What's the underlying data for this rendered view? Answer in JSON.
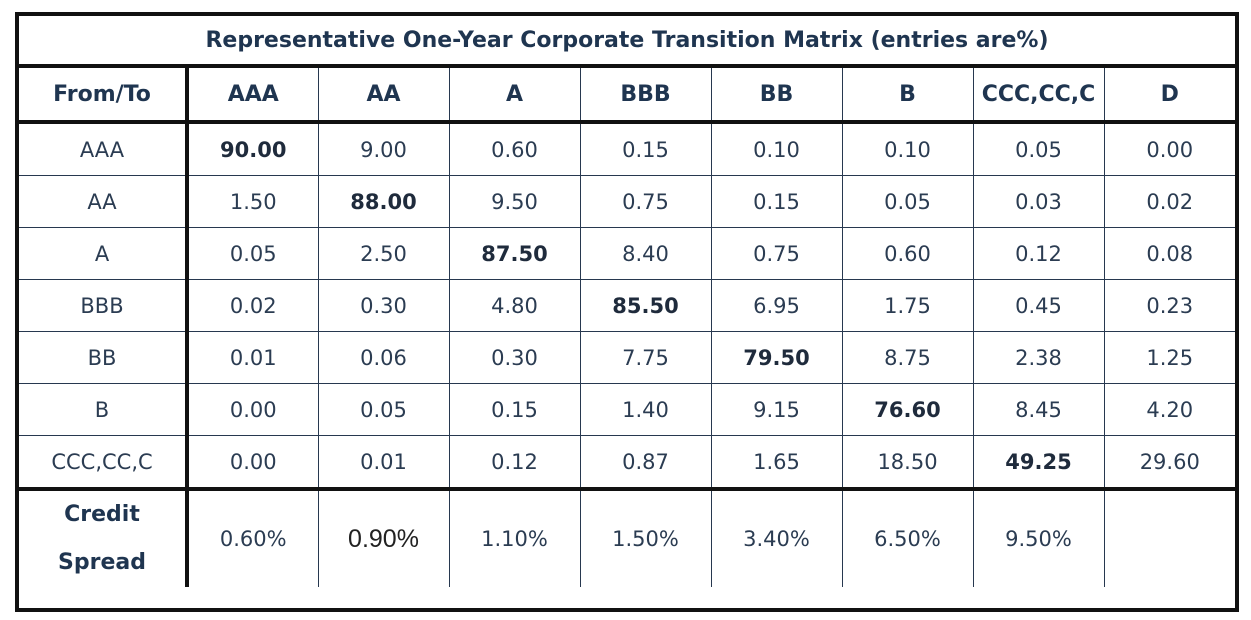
{
  "title": "Representative One-Year Corporate Transition Matrix (entries are%)",
  "columns": [
    "From/To",
    "AAA",
    "AA",
    "A",
    "BBB",
    "BB",
    "B",
    "CCC,CC,C",
    "D"
  ],
  "rows": [
    {
      "label": "AAA",
      "values": [
        "90.00",
        "9.00",
        "0.60",
        "0.15",
        "0.10",
        "0.10",
        "0.05",
        "0.00"
      ],
      "bold_index": 0
    },
    {
      "label": "AA",
      "values": [
        "1.50",
        "88.00",
        "9.50",
        "0.75",
        "0.15",
        "0.05",
        "0.03",
        "0.02"
      ],
      "bold_index": 1
    },
    {
      "label": "A",
      "values": [
        "0.05",
        "2.50",
        "87.50",
        "8.40",
        "0.75",
        "0.60",
        "0.12",
        "0.08"
      ],
      "bold_index": 2
    },
    {
      "label": "BBB",
      "values": [
        "0.02",
        "0.30",
        "4.80",
        "85.50",
        "6.95",
        "1.75",
        "0.45",
        "0.23"
      ],
      "bold_index": 3
    },
    {
      "label": "BB",
      "values": [
        "0.01",
        "0.06",
        "0.30",
        "7.75",
        "79.50",
        "8.75",
        "2.38",
        "1.25"
      ],
      "bold_index": 4
    },
    {
      "label": "B",
      "values": [
        "0.00",
        "0.05",
        "0.15",
        "1.40",
        "9.15",
        "76.60",
        "8.45",
        "4.20"
      ],
      "bold_index": 5
    },
    {
      "label": "CCC,CC,C",
      "values": [
        "0.00",
        "0.01",
        "0.12",
        "0.87",
        "1.65",
        "18.50",
        "49.25",
        "29.60"
      ],
      "bold_index": 6
    }
  ],
  "spread": {
    "label_line1": "Credit",
    "label_line2": "Spread",
    "values": [
      "0.60%",
      "0.90%",
      "1.10%",
      "1.50%",
      "3.40%",
      "6.50%",
      "9.50%",
      ""
    ]
  }
}
